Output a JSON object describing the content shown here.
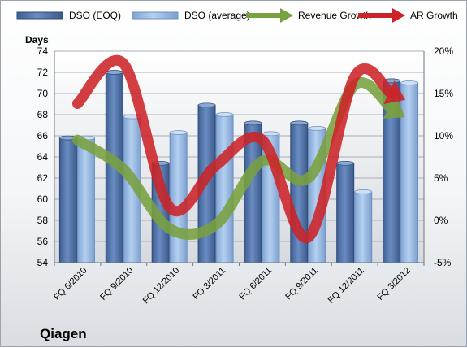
{
  "chart_data": {
    "type": "bar",
    "categories": [
      "FQ 6/2010",
      "FQ 9/2010",
      "FQ 12/2010",
      "FQ 3/2011",
      "FQ 6/2011",
      "FQ 9/2011",
      "FQ 12/2011",
      "FQ 3/2012"
    ],
    "series": [
      {
        "name": "DSO (EOQ)",
        "type": "bar",
        "axis": "left",
        "color": "#5b7db5",
        "values": [
          65.8,
          72.0,
          63.4,
          68.9,
          67.2,
          67.2,
          63.4,
          71.2
        ]
      },
      {
        "name": "DSO (average)",
        "type": "bar",
        "axis": "left",
        "color": "#94b8e4",
        "values": [
          65.8,
          67.8,
          66.3,
          68.0,
          66.2,
          66.7,
          60.7,
          71.0
        ]
      },
      {
        "name": "Revenue Growth",
        "type": "line",
        "axis": "right",
        "color": "#79a13f",
        "values": [
          9.5,
          6.0,
          -1.0,
          -0.5,
          7.0,
          5.0,
          16.0,
          12.5
        ]
      },
      {
        "name": "AR Growth",
        "type": "line",
        "axis": "right",
        "color": "#cc2327",
        "values": [
          13.8,
          18.5,
          1.5,
          6.5,
          9.5,
          -2.0,
          17.0,
          14.5
        ]
      }
    ],
    "ylabel": "Days",
    "ylim": [
      54,
      74
    ],
    "yticks": [
      "54",
      "56",
      "58",
      "60",
      "62",
      "64",
      "66",
      "68",
      "70",
      "72",
      "74"
    ],
    "y2lim": [
      -5,
      20
    ],
    "y2ticks": [
      "-5%",
      "0%",
      "5%",
      "10%",
      "15%",
      "20%"
    ],
    "grid": true,
    "legend": "top"
  },
  "company": "Qiagen"
}
